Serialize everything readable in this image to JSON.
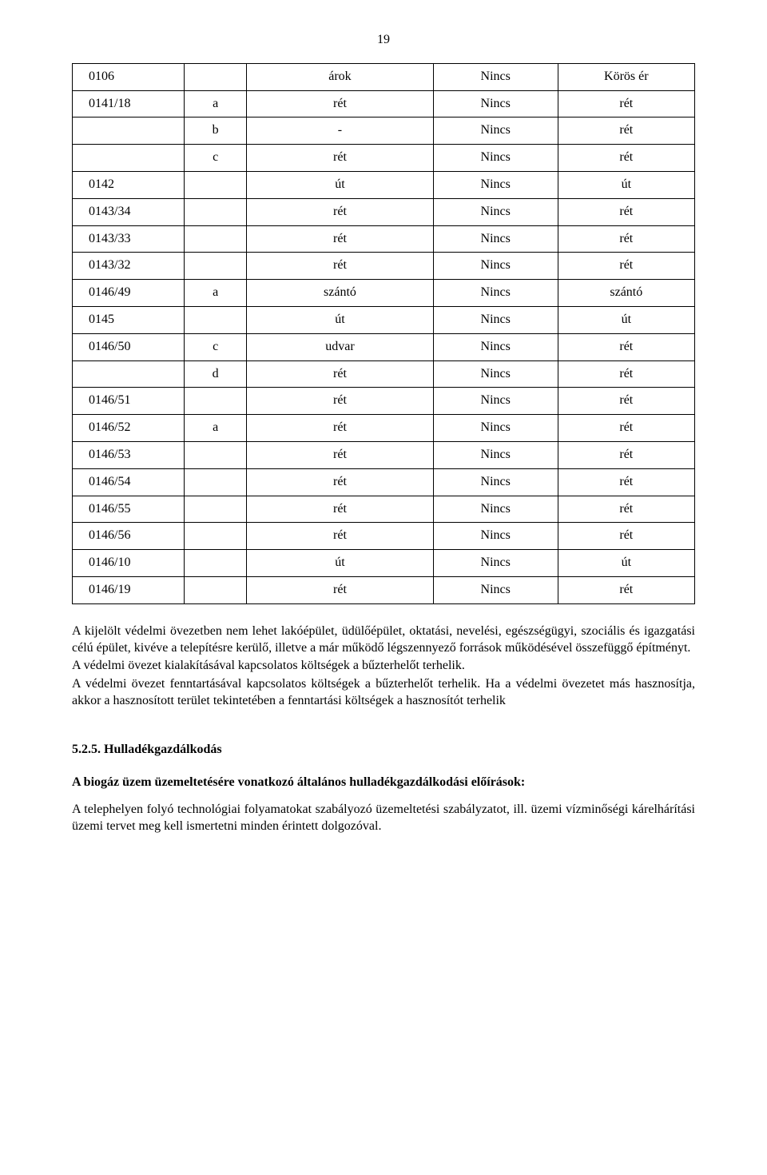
{
  "page_number": "19",
  "table": {
    "columns": [
      "col1",
      "col2",
      "col3",
      "col4",
      "col5"
    ],
    "rows": [
      [
        "0106",
        "",
        "árok",
        "Nincs",
        "Körös ér"
      ],
      [
        "0141/18",
        "a",
        "rét",
        "Nincs",
        "rét"
      ],
      [
        "",
        "b",
        "-",
        "Nincs",
        "rét"
      ],
      [
        "",
        "c",
        "rét",
        "Nincs",
        "rét"
      ],
      [
        "0142",
        "",
        "út",
        "Nincs",
        "út"
      ],
      [
        "0143/34",
        "",
        "rét",
        "Nincs",
        "rét"
      ],
      [
        "0143/33",
        "",
        "rét",
        "Nincs",
        "rét"
      ],
      [
        "0143/32",
        "",
        "rét",
        "Nincs",
        "rét"
      ],
      [
        "0146/49",
        "a",
        "szántó",
        "Nincs",
        "szántó"
      ],
      [
        "0145",
        "",
        "út",
        "Nincs",
        "út"
      ],
      [
        "0146/50",
        "c",
        "udvar",
        "Nincs",
        "rét"
      ],
      [
        "",
        "d",
        "rét",
        "Nincs",
        "rét"
      ],
      [
        "0146/51",
        "",
        "rét",
        "Nincs",
        "rét"
      ],
      [
        "0146/52",
        "a",
        "rét",
        "Nincs",
        "rét"
      ],
      [
        "0146/53",
        "",
        "rét",
        "Nincs",
        "rét"
      ],
      [
        "0146/54",
        "",
        "rét",
        "Nincs",
        "rét"
      ],
      [
        "0146/55",
        "",
        "rét",
        "Nincs",
        "rét"
      ],
      [
        "0146/56",
        "",
        "rét",
        "Nincs",
        "rét"
      ],
      [
        "0146/10",
        "",
        "út",
        "Nincs",
        "út"
      ],
      [
        "0146/19",
        "",
        "rét",
        "Nincs",
        "rét"
      ]
    ]
  },
  "paragraphs": {
    "p1": "A kijelölt védelmi övezetben nem lehet lakóépület, üdülőépület, oktatási, nevelési, egészségügyi, szociális és igazgatási célú épület, kivéve a telepítésre kerülő, illetve a már működő légszennyező források működésével összefüggő építményt.",
    "p2": "A védelmi övezet kialakításával kapcsolatos költségek a bűzterhelőt terhelik.",
    "p3": "A védelmi övezet fenntartásával kapcsolatos költségek a bűzterhelőt terhelik. Ha a védelmi övezetet más hasznosítja, akkor a hasznosított terület tekintetében a fenntartási költségek a hasznosítót terhelik"
  },
  "section_heading": "5.2.5. Hulladékgazdálkodás",
  "bold_line": "A biogáz üzem üzemeltetésére vonatkozó általános hulladékgazdálkodási előírások:",
  "final_paragraph": "A telephelyen folyó technológiai folyamatokat szabályozó üzemeltetési szabályzatot, ill. üzemi vízminőségi kárelhárítási üzemi tervet meg kell ismertetni minden érintett dolgozóval."
}
